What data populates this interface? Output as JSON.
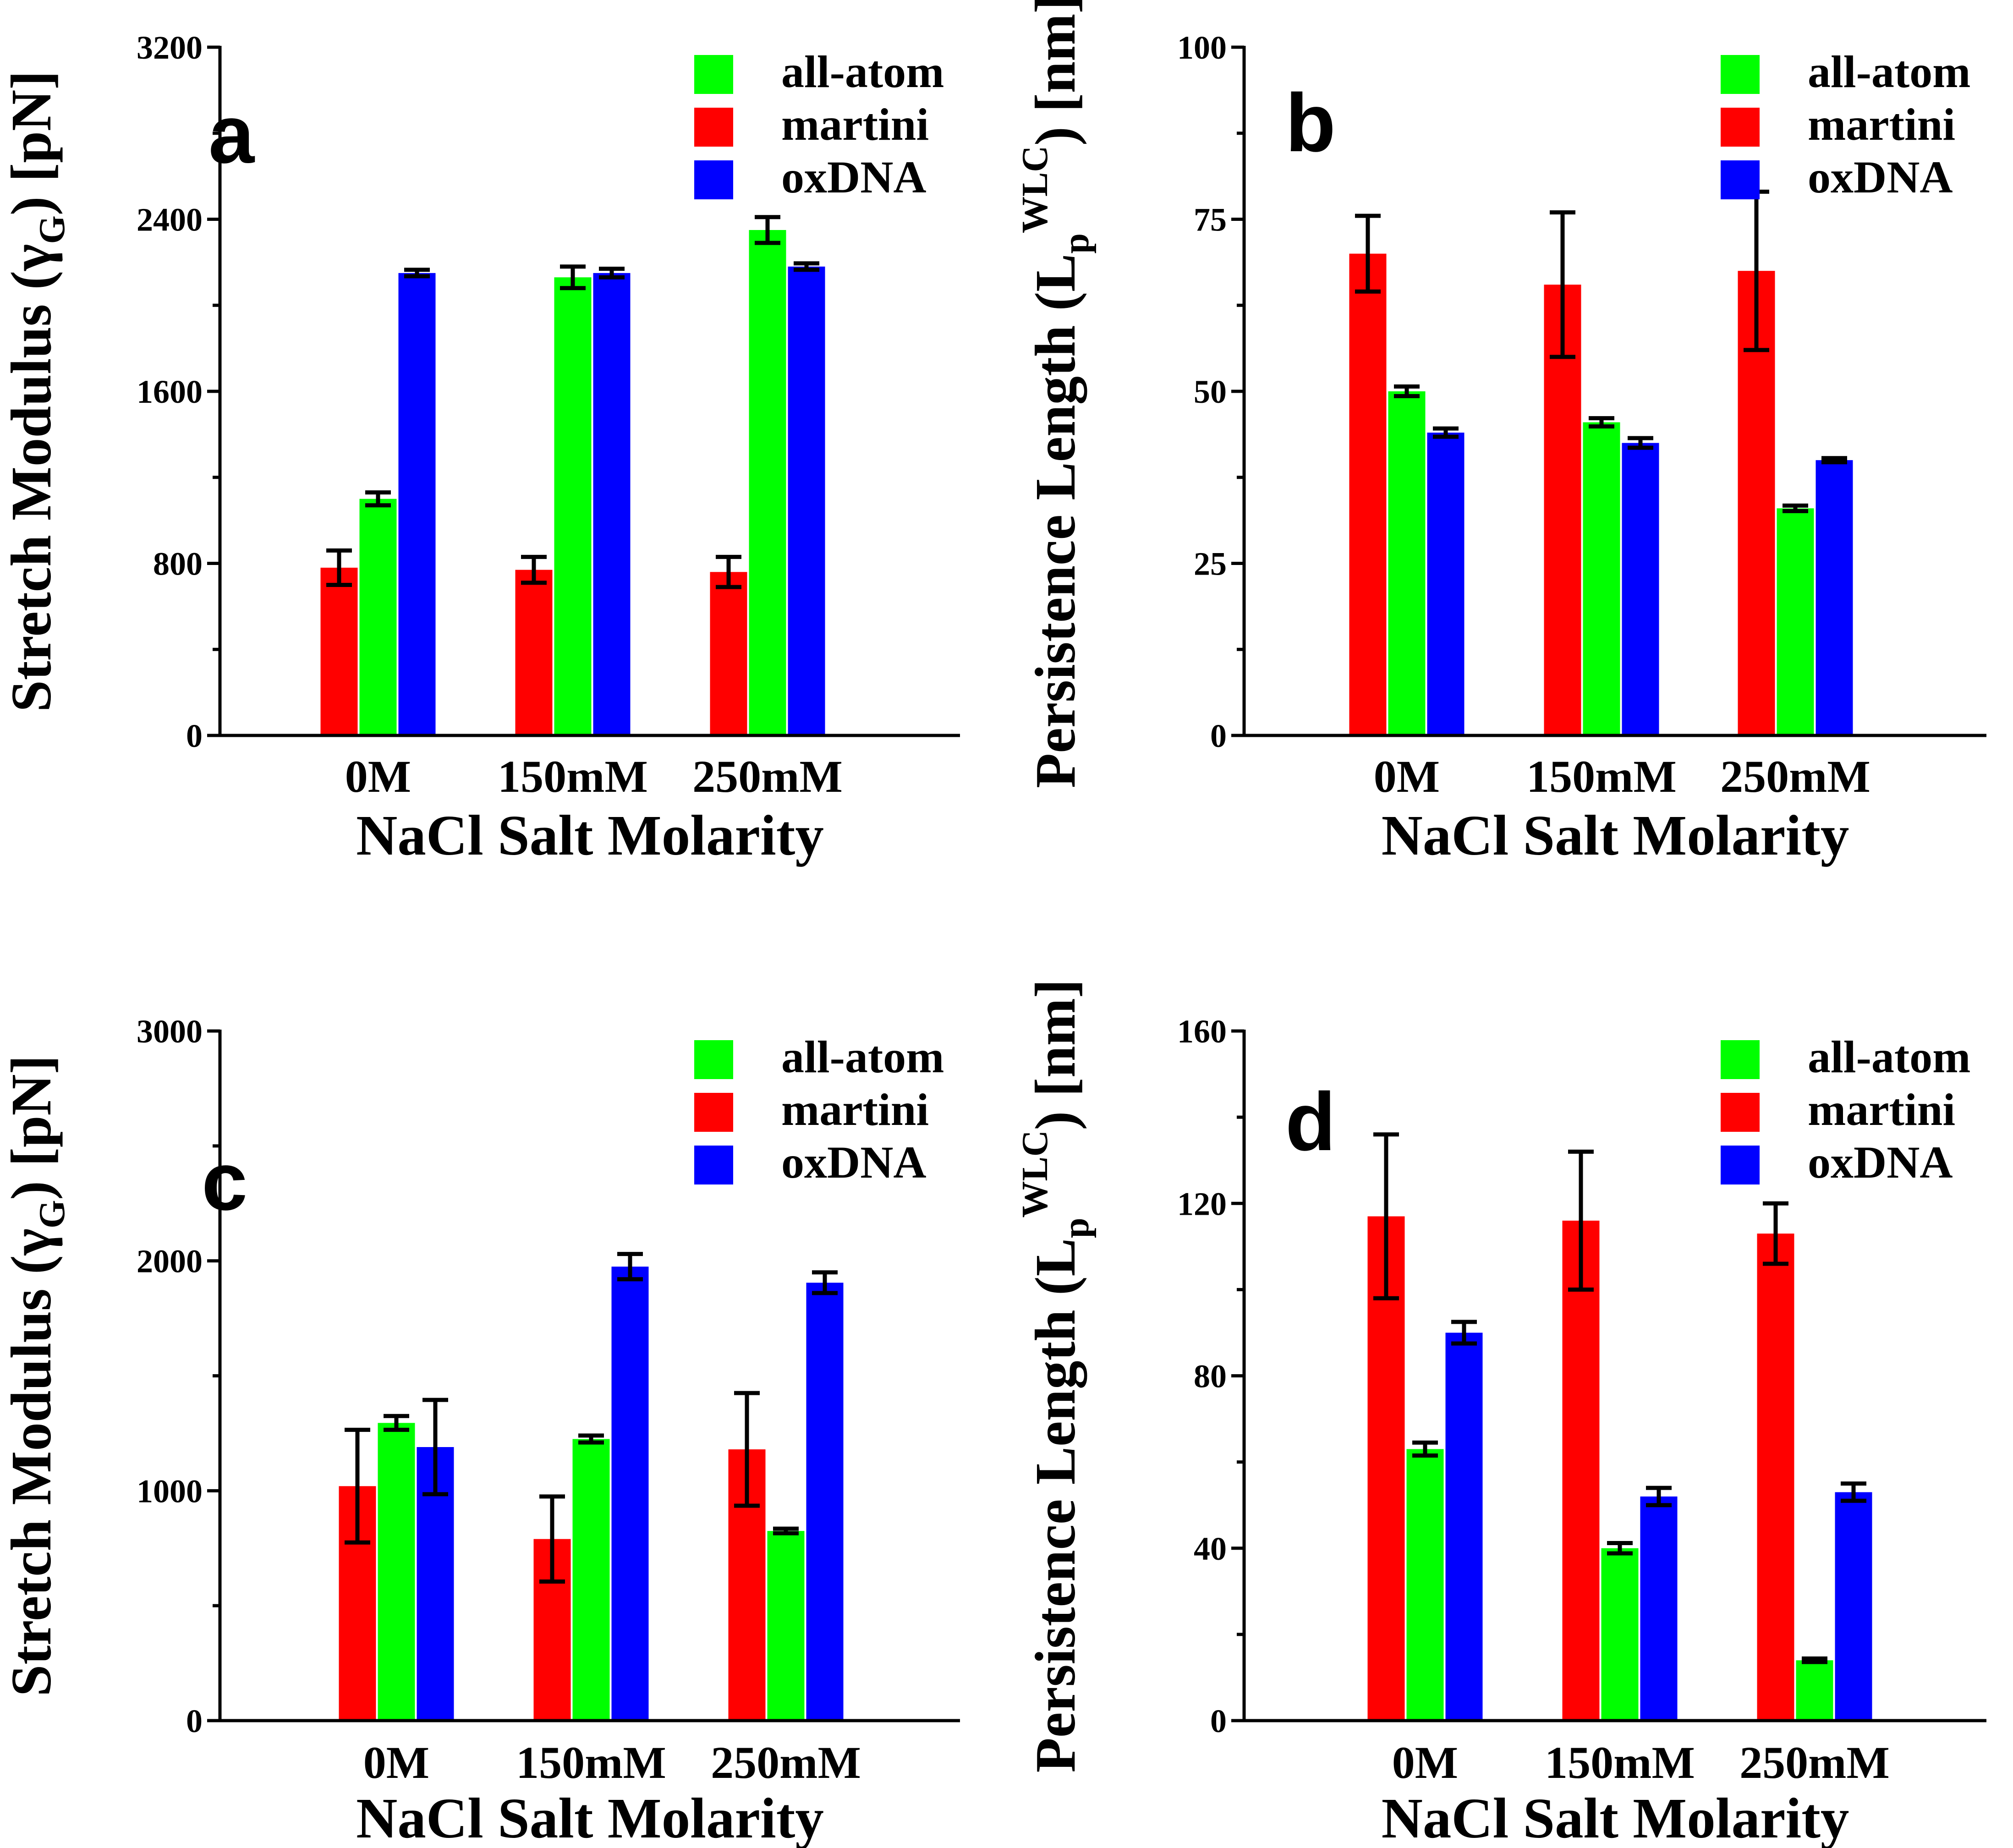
{
  "colors": {
    "all-atom": "#00ff00",
    "martini": "#ff0000",
    "oxDNA": "#0000ff"
  },
  "chart_data": [
    {
      "type": "bar",
      "panel": "a",
      "categories": [
        "0M",
        "150mM",
        "250mM"
      ],
      "xlabel": "NaCl Salt Molarity",
      "ylabel_parts": {
        "main": "Stretch Modulus (",
        "sym": "γ",
        "sub": "G",
        "end": ") [pN]"
      },
      "ylim": [
        0,
        3200
      ],
      "yticks": [
        0,
        800,
        1600,
        2400,
        3200
      ],
      "yticklabels": [
        "0",
        "800",
        "1600",
        "2400",
        "3200"
      ],
      "series": [
        {
          "name": "martini",
          "values": [
            780,
            770,
            760
          ],
          "errors": [
            80,
            60,
            70
          ]
        },
        {
          "name": "all-atom",
          "values": [
            1100,
            2130,
            2350
          ],
          "errors": [
            30,
            50,
            60
          ]
        },
        {
          "name": "oxDNA",
          "values": [
            2150,
            2150,
            2180
          ],
          "errors": [
            15,
            20,
            15
          ]
        }
      ],
      "legend": [
        "all-atom",
        "martini",
        "oxDNA"
      ]
    },
    {
      "type": "bar",
      "panel": "b",
      "categories": [
        "0M",
        "150mM",
        "250mM"
      ],
      "xlabel": "NaCl Salt Molarity",
      "ylabel_parts": {
        "main": "Persistence Length (L",
        "sub": "p",
        "sup": "WLC",
        "end": ") [nm]"
      },
      "ylim": [
        0,
        100
      ],
      "yticks": [
        0,
        25,
        50,
        75,
        100
      ],
      "yticklabels": [
        "0",
        "25",
        "50",
        "75",
        "100"
      ],
      "series": [
        {
          "name": "martini",
          "values": [
            70,
            65.5,
            67.5
          ],
          "errors": [
            5.5,
            10.5,
            11.5
          ]
        },
        {
          "name": "all-atom",
          "values": [
            50,
            45.5,
            33
          ],
          "errors": [
            0.7,
            0.6,
            0.4
          ]
        },
        {
          "name": "oxDNA",
          "values": [
            44,
            42.5,
            40
          ],
          "errors": [
            0.6,
            0.7,
            0.3
          ]
        }
      ],
      "legend": [
        "all-atom",
        "martini",
        "oxDNA"
      ]
    },
    {
      "type": "bar",
      "panel": "c",
      "categories": [
        "0M",
        "150mM",
        "250mM"
      ],
      "xlabel": "NaCl Salt Molarity",
      "ylabel_parts": {
        "main": "Stretch Modulus (",
        "sym": "γ",
        "sub": "G",
        "end": ") [pN]"
      },
      "ylim": [
        0,
        3000
      ],
      "yticks": [
        0,
        1000,
        2000,
        3000
      ],
      "yticklabels": [
        "0",
        "1000",
        "2000",
        "3000"
      ],
      "series": [
        {
          "name": "martini",
          "values": [
            1020,
            790,
            1180
          ],
          "errors": [
            245,
            185,
            245
          ]
        },
        {
          "name": "all-atom",
          "values": [
            1295,
            1225,
            825
          ],
          "errors": [
            30,
            15,
            10
          ]
        },
        {
          "name": "oxDNA",
          "values": [
            1190,
            1975,
            1905
          ],
          "errors": [
            205,
            55,
            45
          ]
        }
      ],
      "legend": [
        "all-atom",
        "martini",
        "oxDNA"
      ]
    },
    {
      "type": "bar",
      "panel": "d",
      "categories": [
        "0M",
        "150mM",
        "250mM"
      ],
      "xlabel": "NaCl Salt Molarity",
      "ylabel_parts": {
        "main": "Persistence Length (L",
        "sub": "p",
        "sup": "WLC",
        "end": ") [nm]"
      },
      "ylim": [
        0,
        160
      ],
      "yticks": [
        0,
        40,
        80,
        120,
        160
      ],
      "yticklabels": [
        "0",
        "40",
        "80",
        "120",
        "160"
      ],
      "series": [
        {
          "name": "martini",
          "values": [
            117,
            116,
            113
          ],
          "errors": [
            19,
            16,
            7
          ]
        },
        {
          "name": "all-atom",
          "values": [
            63,
            40,
            14
          ],
          "errors": [
            1.5,
            1.2,
            0.4
          ]
        },
        {
          "name": "oxDNA",
          "values": [
            90,
            52,
            53
          ],
          "errors": [
            2.5,
            2,
            2
          ]
        }
      ],
      "legend": [
        "all-atom",
        "martini",
        "oxDNA"
      ]
    }
  ]
}
